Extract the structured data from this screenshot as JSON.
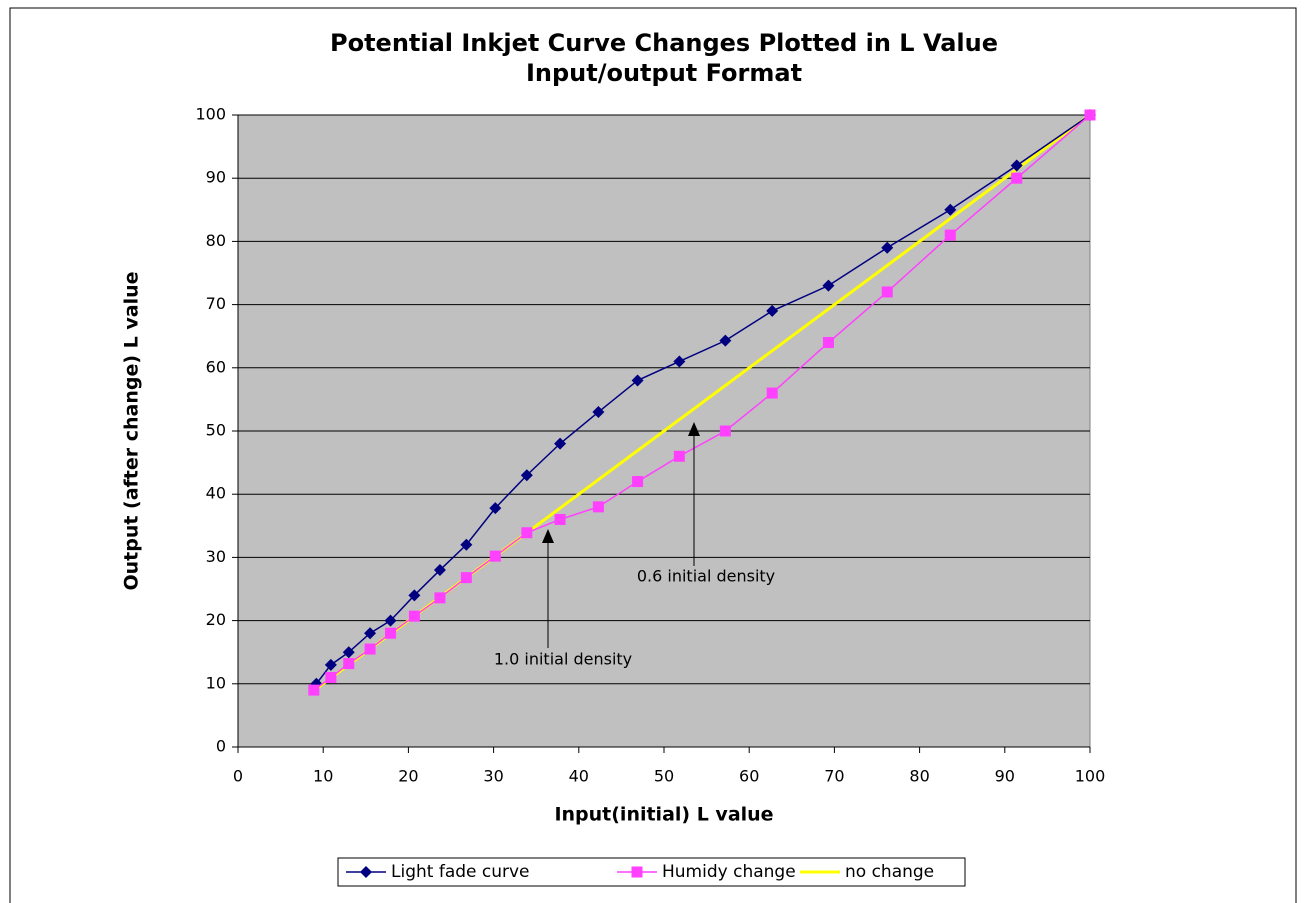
{
  "chart_data": {
    "type": "line",
    "title": [
      "Potential Inkjet Curve Changes Plotted in L Value",
      "Input/output Format"
    ],
    "x_label": "Input(initial) L value",
    "y_label": "Output (after change) L  value",
    "xlim": [
      0,
      100
    ],
    "xticks": [
      0,
      10,
      20,
      30,
      40,
      50,
      60,
      70,
      80,
      90,
      100
    ],
    "ylim": [
      0,
      100
    ],
    "yticks": [
      0,
      10,
      20,
      30,
      40,
      50,
      60,
      70,
      80,
      90,
      100
    ],
    "grid": true,
    "legend": "bottom",
    "series": [
      {
        "name": "Light fade curve",
        "color": "#000080",
        "marker": "diamond",
        "x": [
          9.2,
          10.9,
          13,
          15.5,
          17.9,
          20.7,
          23.7,
          26.8,
          30.2,
          33.9,
          37.8,
          42.3,
          46.9,
          51.8,
          57.2,
          62.7,
          69.3,
          76.2,
          83.6,
          91.4,
          100
        ],
        "values": [
          10,
          13,
          15,
          18,
          20,
          24,
          28,
          32,
          37.8,
          43,
          48,
          53,
          58,
          61,
          64.3,
          69,
          73,
          79,
          85,
          92,
          100
        ]
      },
      {
        "name": "Humidy change",
        "color": "#ff40ff",
        "marker": "square",
        "x": [
          8.9,
          10.9,
          13,
          15.5,
          17.9,
          20.7,
          23.7,
          26.8,
          30.2,
          33.9,
          37.8,
          42.3,
          46.9,
          51.8,
          57.2,
          62.7,
          69.3,
          76.2,
          83.6,
          91.4,
          100
        ],
        "values": [
          9,
          11,
          13.2,
          15.5,
          18,
          20.7,
          23.6,
          26.8,
          30.2,
          33.9,
          36,
          38,
          42,
          46,
          50,
          56,
          64,
          72,
          81,
          90,
          100
        ]
      },
      {
        "name": "no change",
        "color": "#ffff00",
        "marker": "none",
        "x": [
          9.2,
          100
        ],
        "values": [
          9.2,
          100
        ]
      }
    ],
    "annotations": [
      "1.0 initial density",
      "0.6 initial density"
    ]
  }
}
